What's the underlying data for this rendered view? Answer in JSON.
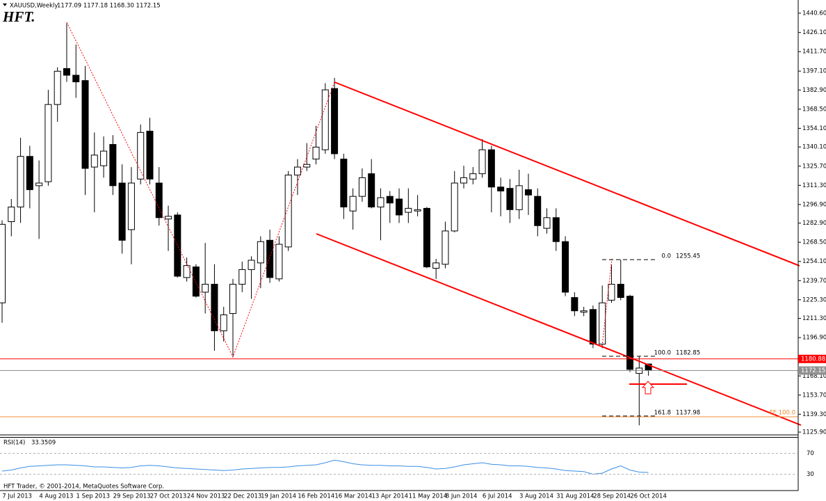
{
  "chart_data": {
    "type": "candlestick",
    "title": "XAUUSD,Weekly",
    "subtitle": "1177.09 1177.18 1168.30 1172.15",
    "logo": "HFT.",
    "footer": "HFT Trader, © 2001-2014, MetaQuotes Software Corp.",
    "categories": [
      null,
      "7 Jul 2013",
      null,
      null,
      null,
      "4 Aug 2013",
      null,
      null,
      null,
      "1 Sep 2013",
      null,
      null,
      null,
      "29 Sep 2013",
      null,
      null,
      null,
      "27 Oct 2013",
      null,
      null,
      null,
      "24 Nov 2013",
      null,
      null,
      null,
      "22 Dec 2013",
      null,
      null,
      null,
      "19 Jan 2014",
      null,
      null,
      null,
      "16 Feb 2014",
      null,
      null,
      null,
      "16 Mar 2014",
      null,
      null,
      null,
      "13 Apr 2014",
      null,
      null,
      null,
      "11 May 2014",
      null,
      null,
      null,
      "8 Jun 2014",
      null,
      null,
      null,
      "6 Jul 2014",
      null,
      null,
      null,
      "3 Aug 2014",
      null,
      null,
      null,
      "31 Aug 2014",
      null,
      null,
      null,
      "28 Sep 2014",
      null,
      null,
      null,
      "26 Oct 2014",
      null
    ],
    "open": [
      1223,
      1284,
      1295,
      1333,
      1311,
      1314,
      1372,
      1399,
      1394,
      1390,
      1325,
      1326,
      1342,
      1313,
      1278,
      1316,
      1352,
      1313,
      1286,
      1289,
      1242,
      1250,
      1231,
      1237,
      1202,
      1215,
      1237,
      1248,
      1253,
      1270,
      1241,
      1265,
      1319,
      1325,
      1331,
      1338,
      1384,
      1331,
      1292,
      1303,
      1320,
      1295,
      1303,
      1301,
      1291,
      1292,
      1294,
      1249,
      1252,
      1277,
      1313,
      1316,
      1320,
      1338,
      1310,
      1309,
      1293,
      1308,
      1303,
      1279,
      1287,
      1269,
      1227,
      1216,
      1218,
      1192,
      1225,
      1237,
      1228,
      1170,
      1177.09
    ],
    "high": [
      1285,
      1301,
      1347,
      1341,
      1330,
      1383,
      1400,
      1433,
      1417,
      1401,
      1351,
      1348,
      1349,
      1327,
      1325,
      1357,
      1362,
      1325,
      1296,
      1291,
      1257,
      1252,
      1268,
      1252,
      1220,
      1241,
      1254,
      1258,
      1273,
      1278,
      1273,
      1322,
      1331,
      1343,
      1356,
      1388,
      1392,
      1335,
      1309,
      1324,
      1331,
      1309,
      1307,
      1309,
      1309,
      1304,
      1295,
      1256,
      1284,
      1322,
      1326,
      1325,
      1346,
      1341,
      1317,
      1316,
      1323,
      1320,
      1309,
      1294,
      1294,
      1273,
      1231,
      1220,
      1221,
      1236,
      1252,
      1255.45,
      1229,
      1183,
      1177.18
    ],
    "low": [
      1208,
      1273,
      1283,
      1294,
      1271,
      1311,
      1359,
      1389,
      1377,
      1304,
      1291,
      1317,
      1304,
      1260,
      1252,
      1312,
      1312,
      1281,
      1262,
      1242,
      1239,
      1227,
      1215,
      1187,
      1194,
      1182,
      1231,
      1226,
      1234,
      1238,
      1239,
      1262,
      1304,
      1322,
      1327,
      1335,
      1331,
      1286,
      1278,
      1299,
      1294,
      1270,
      1283,
      1283,
      1283,
      1288,
      1249,
      1241,
      1249,
      1276,
      1309,
      1312,
      1317,
      1291,
      1288,
      1283,
      1286,
      1289,
      1273,
      1275,
      1262,
      1228,
      1213,
      1213,
      1189,
      1189,
      1223,
      1225,
      1171,
      1131,
      1168.3
    ],
    "close": [
      1282,
      1295,
      1333,
      1308,
      1313,
      1372,
      1397,
      1394,
      1389,
      1324,
      1334,
      1337,
      1311,
      1270,
      1313,
      1351,
      1316,
      1287,
      1288,
      1243,
      1251,
      1228,
      1237,
      1202,
      1214,
      1237,
      1248,
      1255,
      1269,
      1242,
      1267,
      1319,
      1325,
      1327,
      1340,
      1383,
      1335,
      1295,
      1303,
      1317,
      1295,
      1302,
      1298,
      1289,
      1294,
      1293,
      1250,
      1253,
      1277,
      1313,
      1317,
      1320,
      1338,
      1310,
      1307,
      1293,
      1311,
      1304,
      1281,
      1287,
      1269,
      1231,
      1217,
      1217,
      1192,
      1223,
      1237,
      1227,
      1173,
      1174,
      1172.15
    ],
    "up_color": "#ffffff",
    "down_color": "#000000",
    "ylim": [
      1123.8,
      1450.5
    ],
    "yticks": [
      {
        "value": 1440.6,
        "label": "1440.60"
      },
      {
        "value": 1426.1,
        "label": "1426.10"
      },
      {
        "value": 1411.7,
        "label": "1411.70"
      },
      {
        "value": 1397.1,
        "label": "1397.10"
      },
      {
        "value": 1382.9,
        "label": "1382.90"
      },
      {
        "value": 1368.5,
        "label": "1368.50"
      },
      {
        "value": 1354.1,
        "label": "1354.10"
      },
      {
        "value": 1340.1,
        "label": "1340.10"
      },
      {
        "value": 1325.7,
        "label": "1325.70"
      },
      {
        "value": 1311.3,
        "label": "1311.30"
      },
      {
        "value": 1296.9,
        "label": "1296.90"
      },
      {
        "value": 1282.9,
        "label": "1282.90"
      },
      {
        "value": 1268.5,
        "label": "1268.50"
      },
      {
        "value": 1254.1,
        "label": "1254.10"
      },
      {
        "value": 1239.7,
        "label": "1239.70"
      },
      {
        "value": 1225.3,
        "label": "1225.30"
      },
      {
        "value": 1211.3,
        "label": "1211.30"
      },
      {
        "value": 1196.9,
        "label": "1196.90"
      },
      {
        "value": 1168.1,
        "label": "1168.10"
      },
      {
        "value": 1153.7,
        "label": "1153.70"
      },
      {
        "value": 1139.3,
        "label": "1139.30"
      },
      {
        "value": 1125.9,
        "label": "1125.90"
      }
    ],
    "levels": [
      {
        "value": 1180.88,
        "color": "#ff0000"
      },
      {
        "value": 1172.15,
        "color": "#909090"
      },
      {
        "value": 1137.4,
        "label": "FE 100.0",
        "color": "#f08a30"
      }
    ],
    "fib_levels": [
      {
        "ratio": "0.0",
        "price": 1255.45
      },
      {
        "ratio": "100.0",
        "price": 1182.85
      },
      {
        "ratio": "161.8",
        "price": 1137.98
      }
    ],
    "rsi": {
      "label": "RSI(14)",
      "color": "#3a8ee6",
      "values": [
        36,
        38,
        42,
        45,
        46,
        47,
        48,
        48,
        47,
        46,
        44,
        44,
        43,
        42,
        43,
        46,
        47,
        46,
        44,
        42,
        41,
        40,
        39,
        38,
        37,
        38,
        40,
        41,
        42,
        43,
        43,
        44,
        46,
        47,
        48,
        52,
        57,
        54,
        50,
        48,
        47,
        47,
        46,
        46,
        45,
        45,
        43,
        40,
        41,
        44,
        48,
        50,
        52,
        49,
        48,
        46,
        46,
        45,
        43,
        42,
        40,
        37,
        36,
        35,
        30,
        32,
        40,
        46,
        38,
        34,
        33.3509
      ],
      "ylim": [
        0,
        100
      ],
      "yticks": [
        70,
        30
      ]
    }
  }
}
